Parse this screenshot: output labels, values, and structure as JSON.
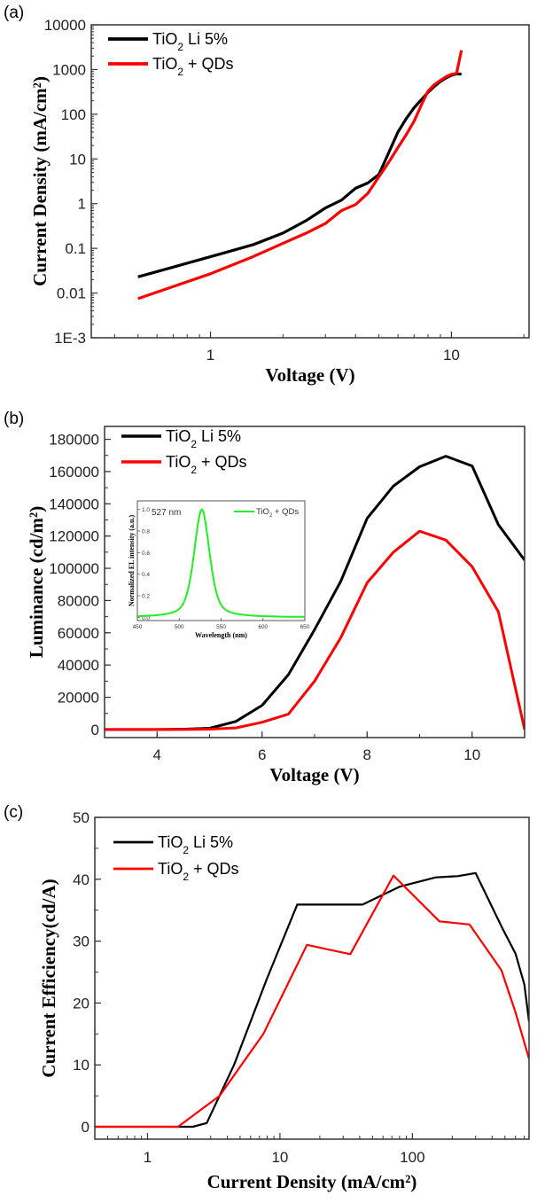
{
  "chart_data": [
    {
      "panel": "(a)",
      "type": "line",
      "xscale": "log",
      "yscale": "log",
      "xlabel": "Voltage (V)",
      "ylabel": "Current Density (mA/cm²)",
      "xlim": [
        0.32,
        21
      ],
      "ylim": [
        0.001,
        10000
      ],
      "xticks": [
        {
          "v": 1,
          "label": "1"
        },
        {
          "v": 10,
          "label": "10"
        }
      ],
      "yticks": [
        {
          "v": 0.001,
          "label": "1E-3"
        },
        {
          "v": 0.01,
          "label": "0.01"
        },
        {
          "v": 0.1,
          "label": "0.1"
        },
        {
          "v": 1,
          "label": "1"
        },
        {
          "v": 10,
          "label": "10"
        },
        {
          "v": 100,
          "label": "100"
        },
        {
          "v": 1000,
          "label": "1000"
        },
        {
          "v": 10000,
          "label": "10000"
        }
      ],
      "legend_position": "top-left",
      "series": [
        {
          "name": "TiO2 Li 5%",
          "legend_main": "TiO",
          "legend_sub": "2",
          "legend_rest": " Li 5%",
          "color": "#000000",
          "x": [
            0.5,
            0.7,
            1.0,
            1.5,
            2.0,
            2.5,
            3.0,
            3.5,
            4.0,
            4.5,
            5.0,
            5.5,
            6.0,
            6.5,
            7.0,
            7.5,
            8.0,
            8.5,
            9.0,
            9.5,
            10.0,
            10.5,
            11.0
          ],
          "y": [
            0.023,
            0.038,
            0.065,
            0.12,
            0.22,
            0.42,
            0.8,
            1.2,
            2.2,
            2.9,
            4.5,
            14,
            40,
            80,
            140,
            210,
            310,
            420,
            540,
            650,
            740,
            800,
            790
          ]
        },
        {
          "name": "TiO2 + QDs",
          "legend_main": "TiO",
          "legend_sub": "2",
          "legend_rest": " + QDs",
          "color": "#ff0000",
          "x": [
            0.5,
            0.7,
            1.0,
            1.5,
            2.0,
            2.5,
            3.0,
            3.5,
            4.0,
            4.5,
            5.0,
            5.5,
            6.0,
            6.5,
            7.0,
            7.5,
            8.0,
            8.5,
            9.0,
            9.5,
            10.0,
            10.5,
            11.0
          ],
          "y": [
            0.0075,
            0.014,
            0.027,
            0.065,
            0.13,
            0.22,
            0.36,
            0.7,
            0.95,
            1.7,
            4.0,
            8.5,
            18,
            35,
            70,
            160,
            330,
            460,
            570,
            690,
            780,
            820,
            2700
          ]
        }
      ]
    },
    {
      "panel": "(b)",
      "type": "line",
      "xscale": "linear",
      "yscale": "linear",
      "xlabel": "Voltage (V)",
      "ylabel": "Luminance (cd/m²)",
      "xlim": [
        3,
        11
      ],
      "ylim": [
        -5000,
        188000
      ],
      "xticks": [
        {
          "v": 4,
          "label": "4"
        },
        {
          "v": 6,
          "label": "6"
        },
        {
          "v": 8,
          "label": "8"
        },
        {
          "v": 10,
          "label": "10"
        }
      ],
      "yticks": [
        {
          "v": 0,
          "label": "0"
        },
        {
          "v": 20000,
          "label": "20000"
        },
        {
          "v": 40000,
          "label": "40000"
        },
        {
          "v": 60000,
          "label": "60000"
        },
        {
          "v": 80000,
          "label": "80000"
        },
        {
          "v": 100000,
          "label": "100000"
        },
        {
          "v": 120000,
          "label": "120000"
        },
        {
          "v": 140000,
          "label": "140000"
        },
        {
          "v": 160000,
          "label": "160000"
        },
        {
          "v": 180000,
          "label": "180000"
        }
      ],
      "legend_position": "top-left",
      "series": [
        {
          "name": "TiO2 Li 5%",
          "legend_main": "TiO",
          "legend_sub": "2",
          "legend_rest": " Li 5%",
          "color": "#000000",
          "x": [
            3,
            3.5,
            4,
            4.5,
            5,
            5.5,
            6,
            6.5,
            7,
            7.5,
            8,
            8.5,
            9,
            9.5,
            10,
            10.5,
            11
          ],
          "y": [
            0,
            0,
            0,
            200,
            800,
            5000,
            15000,
            34000,
            62000,
            92000,
            131000,
            151000,
            163000,
            169500,
            163500,
            127000,
            105000
          ]
        },
        {
          "name": "TiO2 + QDs",
          "legend_main": "TiO",
          "legend_sub": "2",
          "legend_rest": " + QDs",
          "color": "#ff0000",
          "x": [
            3,
            3.5,
            4,
            4.5,
            5,
            5.5,
            6,
            6.5,
            7,
            7.5,
            8,
            8.5,
            9,
            9.5,
            10,
            10.5,
            11
          ],
          "y": [
            0,
            0,
            0,
            0,
            200,
            1000,
            4500,
            9500,
            30000,
            57000,
            91000,
            110000,
            123000,
            117500,
            101000,
            73000,
            0
          ]
        }
      ],
      "inset": {
        "type": "line",
        "xlabel": "Wavelength (nm)",
        "ylabel": "Normalized EL intensity (a.u.)",
        "xlim": [
          450,
          650
        ],
        "ylim": [
          -0.03,
          1.08
        ],
        "xticks": [
          {
            "v": 450,
            "label": "450"
          },
          {
            "v": 500,
            "label": "500"
          },
          {
            "v": 550,
            "label": "550"
          },
          {
            "v": 600,
            "label": "600"
          },
          {
            "v": 650,
            "label": "650"
          }
        ],
        "yticks": [
          {
            "v": 0,
            "label": "0.0"
          },
          {
            "v": 0.2,
            "label": "0.2"
          },
          {
            "v": 0.4,
            "label": "0.4"
          },
          {
            "v": 0.6,
            "label": "0.6"
          },
          {
            "v": 0.8,
            "label": "0.8"
          },
          {
            "v": 1.0,
            "label": "1.0"
          }
        ],
        "annotation": "527 nm",
        "peak_nm": 527,
        "fwhm_nm": 22,
        "legend_position": "top-right",
        "series": [
          {
            "name": "TiO2 + QDs",
            "legend_main": "TiO",
            "legend_sub": "2",
            "legend_rest": " + QDs",
            "color": "#22ee22"
          }
        ]
      }
    },
    {
      "panel": "(c)",
      "type": "line",
      "xscale": "log",
      "yscale": "linear",
      "xlabel": "Current Density (mA/cm²)",
      "ylabel": "Current Efficiency(cd/A)",
      "xlim": [
        0.4,
        760
      ],
      "ylim": [
        -2,
        50
      ],
      "xticks": [
        {
          "v": 1,
          "label": "1"
        },
        {
          "v": 10,
          "label": "10"
        },
        {
          "v": 100,
          "label": "100"
        }
      ],
      "yticks": [
        {
          "v": 0,
          "label": "0"
        },
        {
          "v": 10,
          "label": "10"
        },
        {
          "v": 20,
          "label": "20"
        },
        {
          "v": 30,
          "label": "30"
        },
        {
          "v": 40,
          "label": "40"
        },
        {
          "v": 50,
          "label": "50"
        }
      ],
      "legend_position": "top-left",
      "series": [
        {
          "name": "TiO2 Li 5%",
          "legend_main": "TiO",
          "legend_sub": "2",
          "legend_rest": " Li 5%",
          "color": "#000000",
          "x": [
            0.4,
            1.7,
            2.2,
            2.8,
            4.5,
            8.0,
            13.5,
            25,
            42,
            80,
            150,
            220,
            300,
            480,
            600,
            700,
            760
          ],
          "y": [
            0,
            0,
            0,
            0.6,
            10,
            24,
            35.9,
            35.9,
            35.9,
            38.8,
            40.3,
            40.5,
            41,
            32,
            28,
            23,
            17
          ]
        },
        {
          "name": "TiO2 + QDs",
          "legend_main": "TiO",
          "legend_sub": "2",
          "legend_rest": " + QDs",
          "color": "#ff0000",
          "x": [
            0.4,
            1.7,
            3.5,
            7.5,
            16,
            34,
            72,
            160,
            270,
            470,
            600,
            760
          ],
          "y": [
            0,
            0,
            5,
            15,
            29.4,
            27.9,
            40.6,
            33.2,
            32.7,
            25.3,
            18.5,
            11
          ]
        }
      ]
    }
  ]
}
